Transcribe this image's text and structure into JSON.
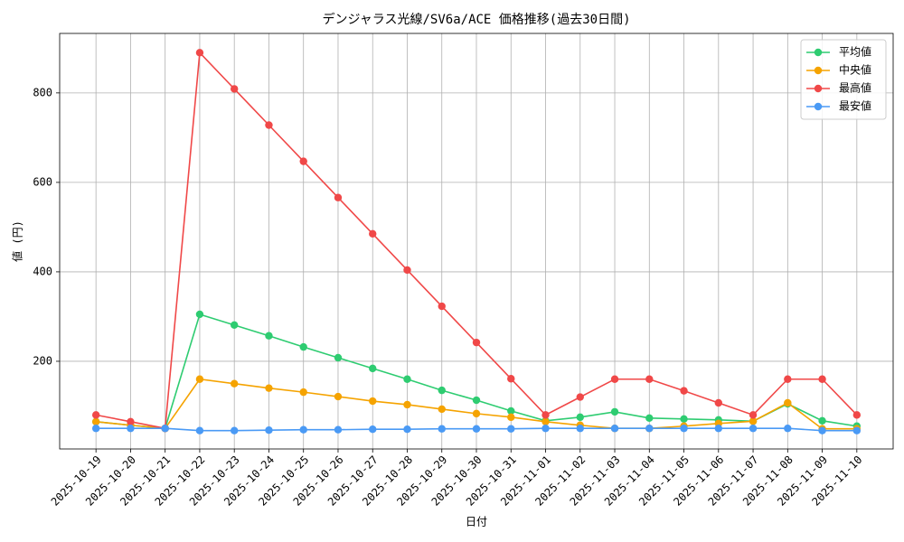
{
  "chart_data": {
    "type": "line",
    "title": "デンジャラス光線/SV6a/ACE 価格推移(過去30日間)",
    "x_label": "日付",
    "y_label": "値 (円)",
    "categories": [
      "2025-10-19",
      "2025-10-20",
      "2025-10-21",
      "2025-10-22",
      "2025-10-23",
      "2025-10-24",
      "2025-10-25",
      "2025-10-26",
      "2025-10-27",
      "2025-10-28",
      "2025-10-29",
      "2025-10-30",
      "2025-10-31",
      "2025-11-01",
      "2025-11-02",
      "2025-11-03",
      "2025-11-04",
      "2025-11-05",
      "2025-11-06",
      "2025-11-07",
      "2025-11-08",
      "2025-11-09",
      "2025-11-10"
    ],
    "series": [
      {
        "name": "平均値",
        "color": "#2ecc71",
        "values": [
          65,
          57,
          50,
          305,
          281,
          257,
          232,
          208,
          184,
          160,
          135,
          113,
          89,
          67,
          75,
          87,
          73,
          71,
          69,
          66,
          105,
          67,
          55
        ]
      },
      {
        "name": "中央値",
        "color": "#f5a300",
        "values": [
          65,
          57,
          50,
          160,
          150,
          140,
          131,
          121,
          111,
          103,
          93,
          83,
          75,
          65,
          57,
          50,
          50,
          55,
          61,
          66,
          107,
          49,
          49
        ]
      },
      {
        "name": "最高値",
        "color": "#f04848",
        "values": [
          80,
          65,
          50,
          890,
          809,
          728,
          647,
          566,
          485,
          404,
          323,
          242,
          161,
          80,
          120,
          160,
          160,
          134,
          107,
          80,
          160,
          160,
          80
        ]
      },
      {
        "name": "最安値",
        "color": "#4a9af5",
        "values": [
          50,
          50,
          50,
          45,
          45,
          46,
          47,
          47,
          48,
          48,
          49,
          49,
          49,
          50,
          50,
          50,
          50,
          50,
          50,
          50,
          50,
          45,
          45
        ]
      }
    ],
    "ylim": [
      4,
      933
    ],
    "yticks": [
      200,
      400,
      600,
      800
    ],
    "grid": true,
    "legend": "upper right"
  }
}
